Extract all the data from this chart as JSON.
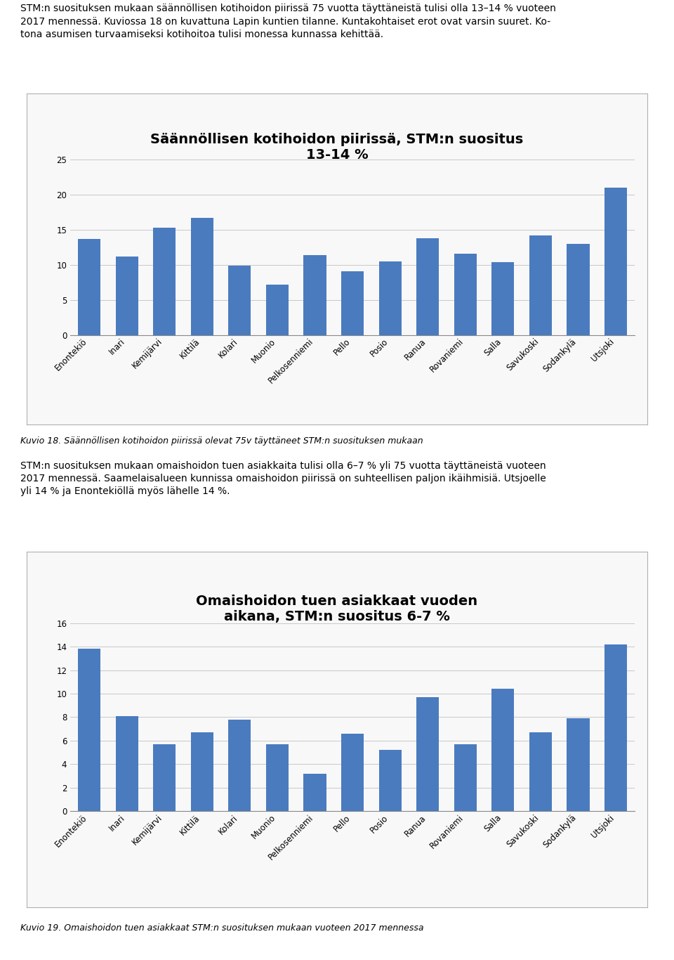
{
  "chart1": {
    "title": "Säännöllisen kotihoidon piirissä, STM:n suositus\n13-14 %",
    "categories": [
      "Enontekiö",
      "Inari",
      "Kemijärvi",
      "Kittilä",
      "Kolari",
      "Muonio",
      "Pelkosenniemi",
      "Pello",
      "Posio",
      "Ranua",
      "Rovaniemi",
      "Salla",
      "Savukoski",
      "Sodankylä",
      "Utsjoki"
    ],
    "values": [
      13.7,
      11.2,
      15.3,
      16.7,
      9.9,
      7.2,
      11.4,
      9.1,
      10.5,
      13.8,
      11.6,
      10.4,
      14.2,
      13.0,
      21.0
    ],
    "bar_color": "#4472a8",
    "ylim": [
      0,
      25
    ],
    "yticks": [
      0,
      5,
      10,
      15,
      20,
      25
    ],
    "caption": "Kuvio 18. Säännöllisen kotihoidon piirissä olevat 75v täyttäneet STM:n suosituksen mukaan"
  },
  "chart2": {
    "title": "Omaishoidon tuen asiakkaat vuoden\naikana, STM:n suositus 6-7 %",
    "categories": [
      "Enontekiö",
      "Inari",
      "Kemijärvi",
      "Kittilä",
      "Kolari",
      "Muonio",
      "Pelkosenniemi",
      "Pello",
      "Posio",
      "Ranua",
      "Rovaniemi",
      "Salla",
      "Savukoski",
      "Sodankylä",
      "Utsjoki"
    ],
    "values": [
      13.8,
      8.1,
      5.7,
      6.7,
      7.8,
      5.7,
      3.2,
      6.6,
      5.2,
      9.7,
      5.7,
      10.4,
      6.7,
      7.9,
      14.2
    ],
    "bar_color": "#4472a8",
    "ylim": [
      0,
      16
    ],
    "yticks": [
      0,
      2,
      4,
      6,
      8,
      10,
      12,
      14,
      16
    ],
    "caption": "Kuvio 19. Omaishoidon tuen asiakkaat STM:n suosituksen mukaan vuoteen 2017 mennessa"
  },
  "intro_text": "STM:n suosituksen mukaan säännöllisen kotihoidon piirissä 75 vuotta täyttäneistä tulisi olla 13–14 % vuoteen\n2017 mennessä. Kuviossa 18 on kuvattuna Lapin kuntien tilanne. Kuntakohtaiset erot ovat varsin suuret. Ko-\ntona asumisen turvaamiseksi kotihoitoa tulisi monessa kunnassa kehittää.",
  "middle_text": "STM:n suosituksen mukaan omaishoidon tuen asiakkaita tulisi olla 6–7 % yli 75 vuotta täyttäneistä vuoteen\n2017 mennessä. Saamelaisalueen kunnissa omaishoidon piirissä on suhteellisen paljon ikäihmisiä. Utsjoelle\nyli 14 % ja Enontekiöllä myös lähelle 14 %.",
  "bg_color": "#ffffff",
  "bar_color": "#4a7bbf",
  "grid_color": "#c8c8c8",
  "border_color": "#b0b0b0",
  "title_fontsize": 14,
  "caption_fontsize": 9,
  "text_fontsize": 10,
  "tick_fontsize": 8.5
}
